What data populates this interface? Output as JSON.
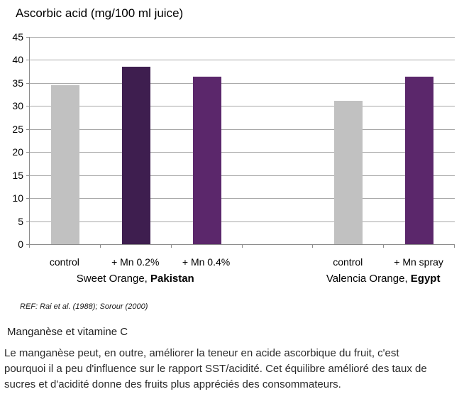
{
  "chart_data": {
    "type": "bar",
    "title": "Ascorbic acid (mg/100 ml juice)",
    "xlabel": "",
    "ylabel": "",
    "ylim": [
      0,
      45
    ],
    "ytick_step": 5,
    "grid": true,
    "legend": "none",
    "num_slots": 6,
    "categories": [
      "control",
      "+ Mn 0.2%",
      "+ Mn 0.4%",
      "control",
      "+ Mn spray"
    ],
    "values": [
      34.5,
      38.5,
      36.3,
      31.2,
      36.3
    ],
    "bars": [
      {
        "category": "control",
        "value": 34.5,
        "slot": 0,
        "color": "#C1C1C1"
      },
      {
        "category": "+ Mn 0.2%",
        "value": 38.5,
        "slot": 1,
        "color": "#3E1E4F"
      },
      {
        "category": "+ Mn 0.4%",
        "value": 36.3,
        "slot": 2,
        "color": "#5B276B"
      },
      {
        "category": "control",
        "value": 31.2,
        "slot": 4,
        "color": "#C1C1C1"
      },
      {
        "category": "+ Mn spray",
        "value": 36.3,
        "slot": 5,
        "color": "#5B276B"
      }
    ],
    "groups": [
      {
        "name": "Sweet Orange, ",
        "bold": "Pakistan",
        "slot_start": 0,
        "slot_end": 2
      },
      {
        "name": "Valencia Orange, ",
        "bold": "Egypt",
        "slot_start": 4,
        "slot_end": 5
      }
    ],
    "colors": {
      "control_bar": "#C1C1C1",
      "mn_dark_bar": "#3E1E4F",
      "mn_medium_bar": "#5B276B",
      "axis": "#8C8C8C",
      "gridline": "#A8A8A8"
    }
  },
  "reference": "REF: Rai et al. (1988); Sorour (2000)",
  "caption": {
    "heading": "Manganèse et vitamine C",
    "lines": [
      "Le manganèse peut, en outre, améliorer la teneur en acide ascorbique du fruit, c'est",
      "pourquoi il a peu d'influence sur le rapport SST/acidité. Cet équilibre amélioré des taux de",
      "sucres et d'acidité donne des fruits plus appréciés des consommateurs."
    ]
  }
}
